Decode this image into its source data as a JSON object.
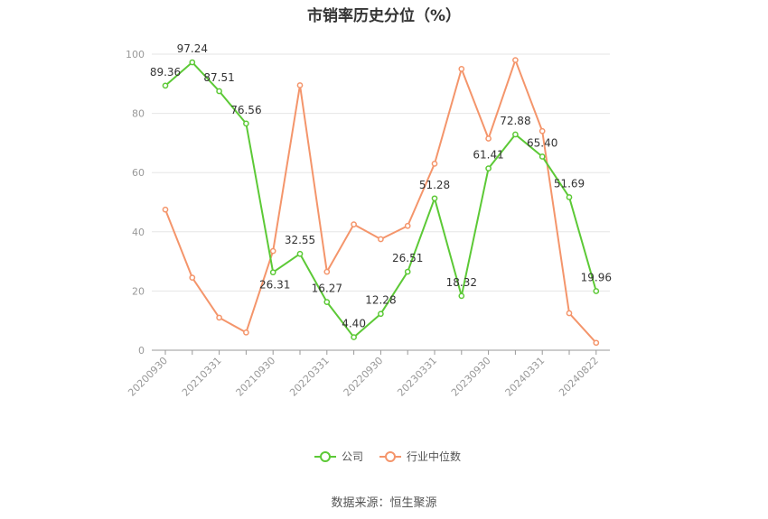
{
  "chart_data": {
    "type": "line",
    "title": "市销率历史分位（%）",
    "xlabel": "",
    "ylabel": "",
    "ylim": [
      0,
      100
    ],
    "yticks": [
      0,
      20,
      40,
      60,
      80,
      100
    ],
    "x_tick_labels": [
      "20200930",
      "20210331",
      "20210930",
      "20220331",
      "20220930",
      "20230331",
      "20230930",
      "20240331",
      "20240822"
    ],
    "point_count": 17,
    "grid": true,
    "legend_position": "bottom",
    "series": [
      {
        "name": "公司",
        "color": "#5cc936",
        "values": [
          89.36,
          97.24,
          87.51,
          76.56,
          26.31,
          32.55,
          16.27,
          4.4,
          12.28,
          26.51,
          51.28,
          18.32,
          61.41,
          72.88,
          65.4,
          51.69,
          19.96
        ],
        "labels": [
          "89.36",
          "97.24",
          "87.51",
          "76.56",
          "26.31",
          "32.55",
          "16.27",
          "4.40",
          "12.28",
          "26.51",
          "51.28",
          "18.32",
          "61.41",
          "72.88",
          "65.40",
          "51.69",
          "19.96"
        ]
      },
      {
        "name": "行业中位数",
        "color": "#f4956b",
        "values": [
          47.5,
          24.5,
          11,
          6,
          33.5,
          89.5,
          26.5,
          42.5,
          37.5,
          42,
          63,
          95,
          71.5,
          98,
          74,
          12.5,
          2.5
        ]
      }
    ]
  },
  "source": "数据来源：恒生聚源"
}
